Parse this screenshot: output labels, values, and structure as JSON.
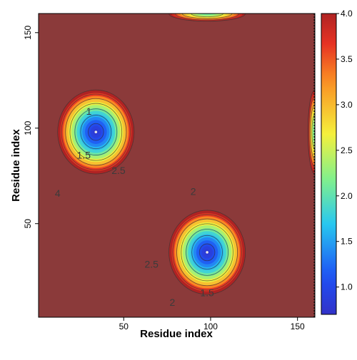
{
  "chart_data": {
    "type": "heatmap",
    "title": "",
    "xlabel": "Residue index",
    "ylabel": "Residue index",
    "xlim": [
      1,
      160
    ],
    "ylim": [
      1,
      160
    ],
    "x_ticks": [
      50,
      100,
      150
    ],
    "y_ticks": [
      50,
      100,
      150
    ],
    "colorbar": {
      "range": [
        0.7,
        4.0
      ],
      "ticks": [
        "1.0",
        "1.5",
        "2.0",
        "2.5",
        "3.0",
        "3.5",
        "4.0"
      ],
      "tick_values": [
        1.0,
        1.5,
        2.0,
        2.5,
        3.0,
        3.5,
        4.0
      ]
    },
    "background_value": 4.0,
    "colors": {
      "background": "#8b3a3a",
      "contour_line": "#333333"
    },
    "basins": [
      {
        "center": [
          34,
          98
        ],
        "radii": [
          22,
          22
        ],
        "min_value": 0.75
      },
      {
        "center": [
          98,
          35
        ],
        "radii": [
          22,
          22
        ],
        "min_value": 0.75
      },
      {
        "center": [
          160,
          98
        ],
        "radii": [
          4,
          22
        ],
        "min_value": 2.0
      },
      {
        "center": [
          98,
          160
        ],
        "radii": [
          22,
          4
        ],
        "min_value": 2.0
      }
    ],
    "minima_markers": [
      [
        34,
        98
      ],
      [
        98,
        35
      ]
    ],
    "contour_levels": [
      1,
      1.5,
      2,
      2.5,
      3,
      3.5,
      4
    ],
    "contour_labels": [
      {
        "text": "1",
        "x": 30,
        "y": 107
      },
      {
        "text": "1.5",
        "x": 27,
        "y": 84
      },
      {
        "text": "2.5",
        "x": 47,
        "y": 76
      },
      {
        "text": "4",
        "x": 12,
        "y": 64
      },
      {
        "text": "2",
        "x": 90,
        "y": 65
      },
      {
        "text": "2.5",
        "x": 66,
        "y": 27
      },
      {
        "text": "1.5",
        "x": 98,
        "y": 12
      },
      {
        "text": "2",
        "x": 78,
        "y": 7
      }
    ]
  }
}
